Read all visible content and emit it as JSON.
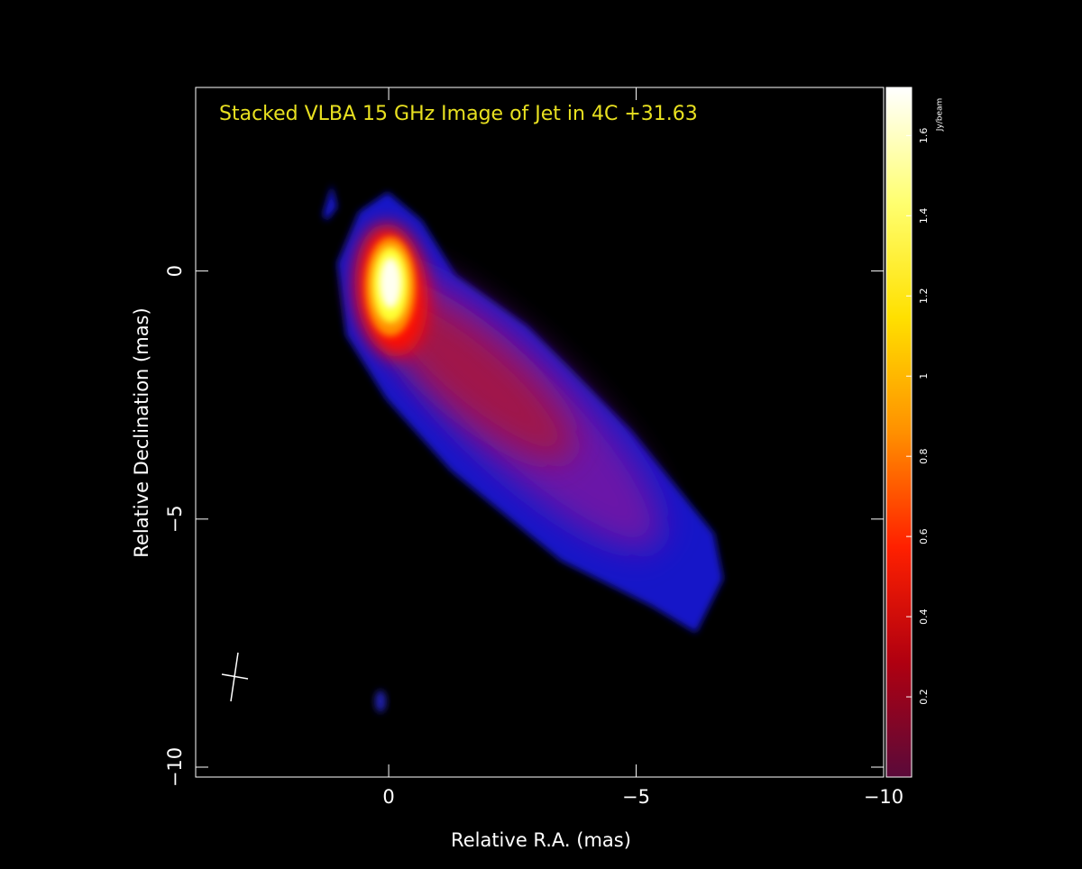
{
  "chart_data": {
    "type": "image",
    "title": "Stacked VLBA 15 GHz Image of Jet in 4C +31.63",
    "xlabel": "Relative R.A. (mas)",
    "ylabel": "Relative Declination (mas)",
    "xlim": [
      3.9,
      -10
    ],
    "ylim": [
      -10.2,
      3.7
    ],
    "xticks": [
      0,
      {
        "value": -5,
        "label": "−5"
      },
      {
        "value": -10,
        "label": "−10"
      }
    ],
    "yticks": [
      0,
      {
        "value": -5,
        "label": "−5"
      },
      {
        "value": -10,
        "label": "−10"
      }
    ],
    "colorbar": {
      "label": "Jy/beam",
      "lim": [
        0,
        1.72
      ],
      "ticks": [
        0.2,
        0.4,
        0.6,
        0.8,
        1,
        1.2,
        1.4,
        1.6
      ],
      "colors": [
        "#5a0a3a",
        "#b00010",
        "#ff2000",
        "#ff9000",
        "#ffe000",
        "#ffff70",
        "#ffffff"
      ]
    },
    "title_color": "#e8e020",
    "axis_color": "#ffffff"
  }
}
